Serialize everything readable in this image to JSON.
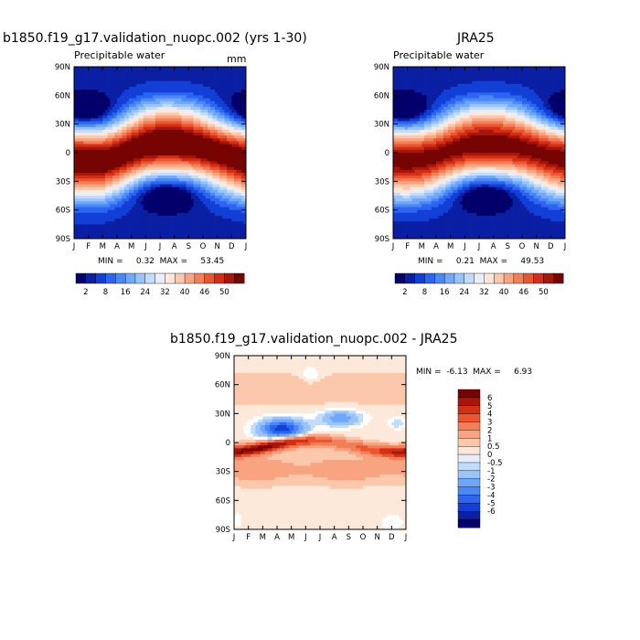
{
  "panels": [
    {
      "title": "b1850.f19_g17.validation_nuopc.002 (yrs 1-30)",
      "subtitle_left": "Precipitable water",
      "subtitle_right": "mm",
      "stats": "MIN =     0.32  MAX =     53.45",
      "colorbar_labels": [
        "2",
        "8",
        "16",
        "24",
        "32",
        "40",
        "46",
        "50"
      ]
    },
    {
      "title": "JRA25",
      "subtitle_left": "Precipitable water",
      "subtitle_right": "",
      "stats": "MIN =     0.21  MAX =     49.53",
      "colorbar_labels": [
        "2",
        "8",
        "16",
        "24",
        "32",
        "40",
        "46",
        "50"
      ]
    },
    {
      "title": "b1850.f19_g17.validation_nuopc.002 - JRA25",
      "stats": "MIN =  -6.13  MAX =     6.93",
      "colorbar_labels": [
        "6",
        "5",
        "4",
        "3",
        "2",
        "1",
        "0.5",
        "0",
        "-0.5",
        "-1",
        "-2",
        "-3",
        "-4",
        "-5",
        "-6"
      ]
    }
  ],
  "chart_data": [
    {
      "type": "heatmap",
      "title": "b1850.f19_g17.validation_nuopc.002 (yrs 1-30)",
      "subtitle": "Precipitable water",
      "units": "mm",
      "x_ticks": [
        "J",
        "F",
        "M",
        "A",
        "M",
        "J",
        "J",
        "A",
        "S",
        "O",
        "N",
        "D",
        "J"
      ],
      "y_ticks": [
        "90N",
        "60N",
        "30N",
        "0",
        "30S",
        "60S",
        "90S"
      ],
      "levels": [
        2,
        8,
        16,
        24,
        32,
        40,
        46,
        50
      ],
      "min": 0.32,
      "max": 53.45,
      "approx_peak_latitude_by_month": [
        -7,
        -8,
        -8,
        -4,
        2,
        7,
        9,
        9,
        8,
        5,
        1,
        -3,
        -7
      ]
    },
    {
      "type": "heatmap",
      "title": "JRA25",
      "subtitle": "Precipitable water",
      "x_ticks": [
        "J",
        "F",
        "M",
        "A",
        "M",
        "J",
        "J",
        "A",
        "S",
        "O",
        "N",
        "D",
        "J"
      ],
      "y_ticks": [
        "90N",
        "60N",
        "30N",
        "0",
        "30S",
        "60S",
        "90S"
      ],
      "levels": [
        2,
        8,
        16,
        24,
        32,
        40,
        46,
        50
      ],
      "min": 0.21,
      "max": 49.53,
      "approx_peak_latitude_by_month": [
        -6,
        -7,
        -6,
        -3,
        2,
        6,
        8,
        8,
        7,
        5,
        1,
        -3,
        -6
      ]
    },
    {
      "type": "heatmap",
      "title": "b1850.f19_g17.validation_nuopc.002 - JRA25",
      "x_ticks": [
        "J",
        "F",
        "M",
        "A",
        "M",
        "J",
        "J",
        "A",
        "S",
        "O",
        "N",
        "D",
        "J"
      ],
      "y_ticks": [
        "90N",
        "60N",
        "30N",
        "0",
        "30S",
        "60S",
        "90S"
      ],
      "levels": [
        -6,
        -5,
        -4,
        -3,
        -2,
        -1,
        -0.5,
        0,
        0.5,
        1,
        2,
        3,
        4,
        5,
        6
      ],
      "min": -6.13,
      "max": 6.93
    }
  ],
  "colors": {
    "diverging_17": [
      "#03006b",
      "#0a1fa3",
      "#1240d6",
      "#2b65f0",
      "#4a88f7",
      "#6fa7fa",
      "#98c3fb",
      "#c2dcfb",
      "#e6effb",
      "#fde7d8",
      "#fcc8ac",
      "#f9a481",
      "#f47e57",
      "#ea5630",
      "#d22f14",
      "#a8150a",
      "#760502"
    ]
  }
}
